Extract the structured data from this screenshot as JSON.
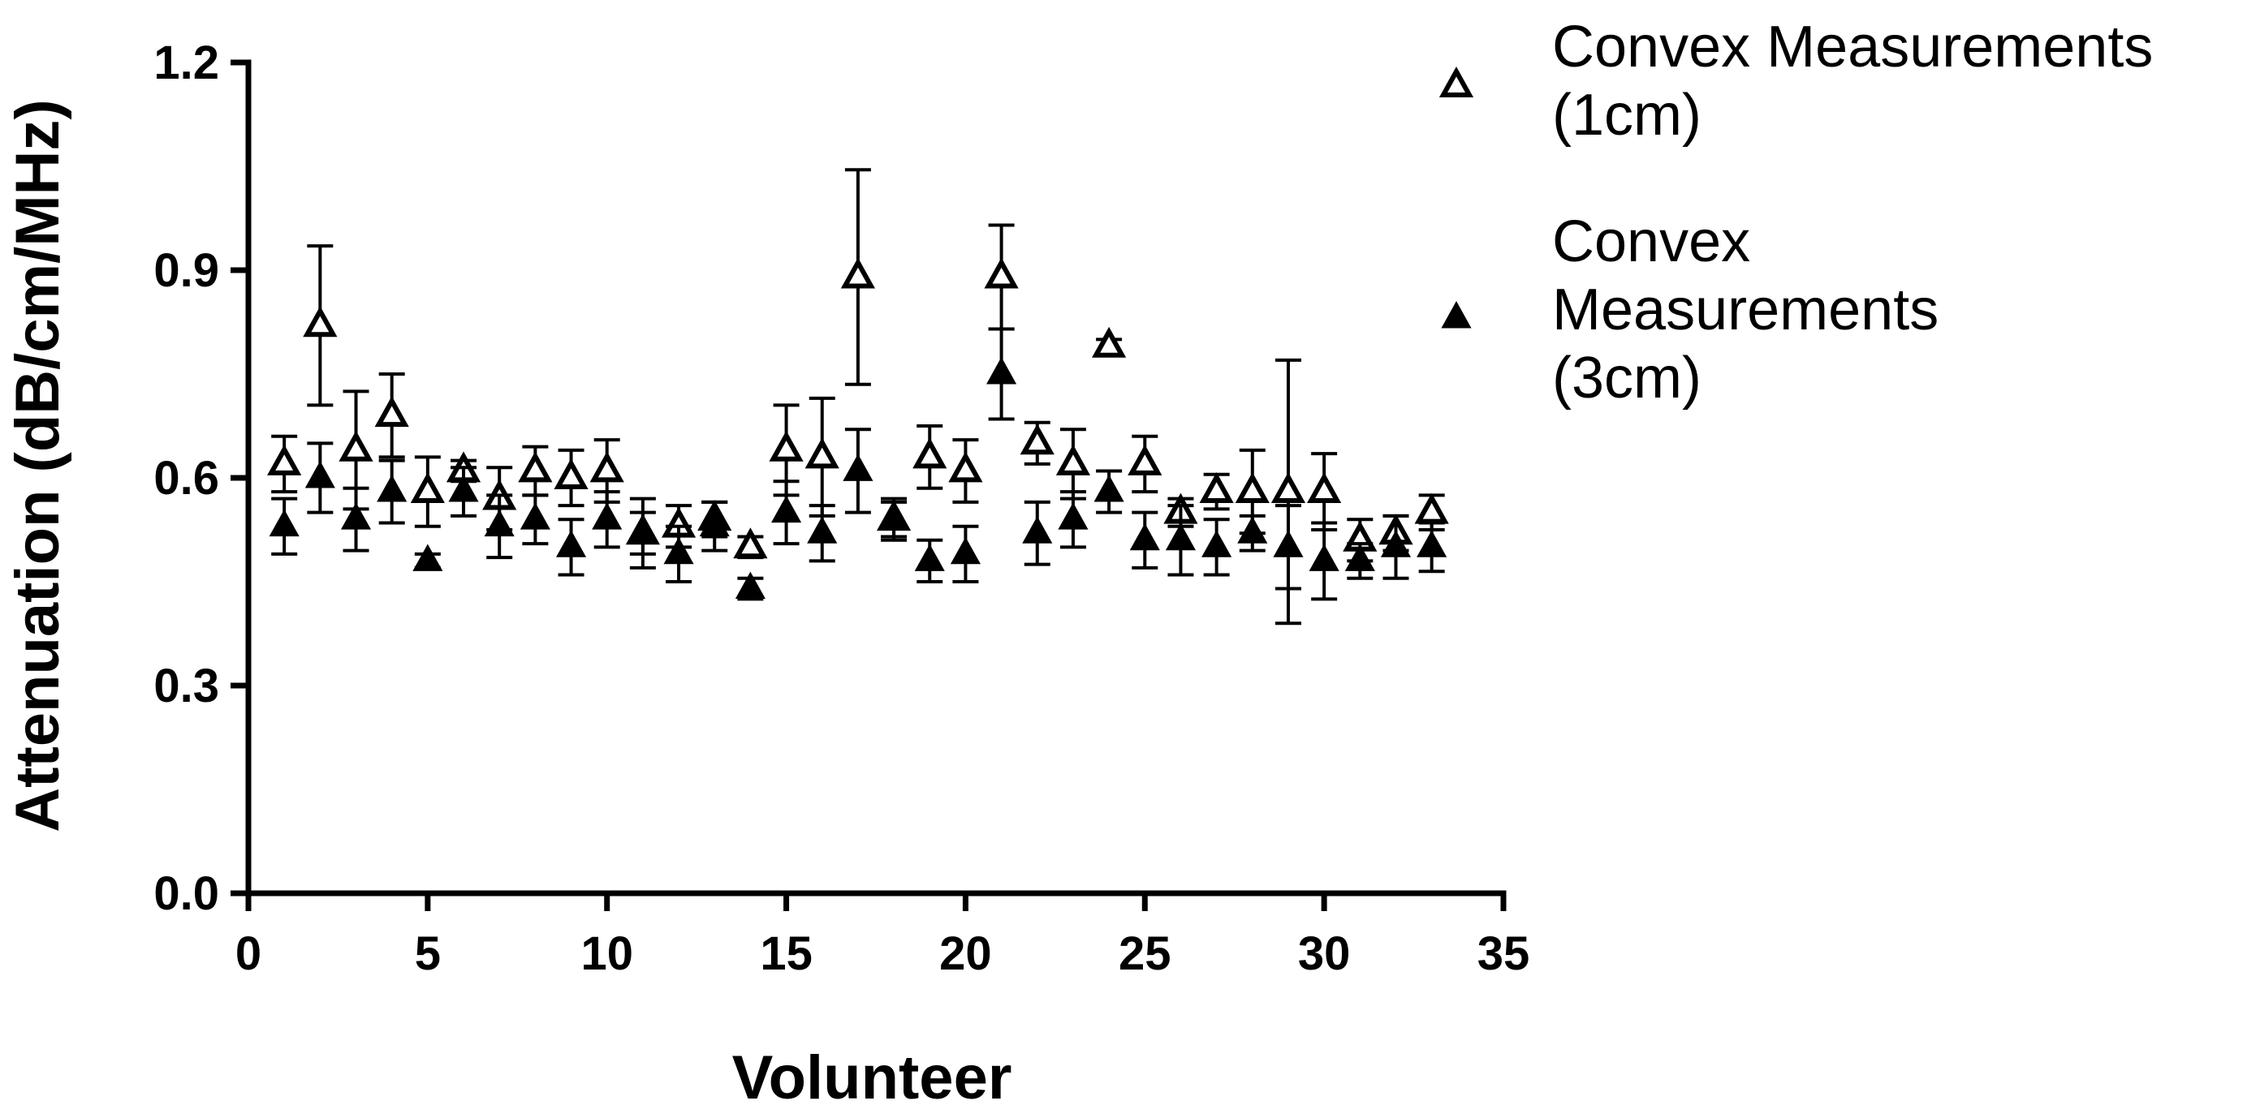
{
  "chart_data": {
    "type": "scatter",
    "title": "",
    "xlabel": "Volunteer",
    "ylabel": "Attenuation (dB/cm/MHz)",
    "xlim": [
      0,
      35
    ],
    "ylim": [
      0.0,
      1.2
    ],
    "xticks": [
      0,
      5,
      10,
      15,
      20,
      25,
      30,
      35
    ],
    "yticks": [
      0.0,
      0.3,
      0.6,
      0.9,
      1.2
    ],
    "xtick_labels": [
      "0",
      "5",
      "10",
      "15",
      "20",
      "25",
      "30",
      "35"
    ],
    "ytick_labels": [
      "0.0",
      "0.3",
      "0.6",
      "0.9",
      "1.2"
    ],
    "grid": false,
    "legend_position": "top-right, outside plot",
    "series": [
      {
        "name": "Convex Measurements (1cm)",
        "legend_lines": [
          "Convex Measurements",
          "(1cm)"
        ],
        "marker": "open-triangle",
        "x": [
          1,
          2,
          3,
          4,
          5,
          6,
          7,
          8,
          9,
          10,
          11,
          12,
          13,
          14,
          15,
          16,
          17,
          18,
          19,
          20,
          21,
          22,
          23,
          24,
          25,
          26,
          27,
          28,
          29,
          30,
          31,
          32,
          33
        ],
        "values": [
          0.62,
          0.82,
          0.64,
          0.69,
          0.58,
          0.61,
          0.57,
          0.61,
          0.6,
          0.61,
          0.52,
          0.53,
          0.54,
          0.5,
          0.64,
          0.63,
          0.89,
          0.54,
          0.63,
          0.61,
          0.89,
          0.65,
          0.62,
          0.79,
          0.62,
          0.55,
          0.58,
          0.58,
          0.58,
          0.58,
          0.51,
          0.52,
          0.55
        ],
        "error": [
          0.04,
          0.115,
          0.085,
          0.06,
          0.05,
          0.015,
          0.045,
          0.035,
          0.04,
          0.045,
          0.03,
          0.03,
          0.025,
          0.015,
          0.065,
          0.085,
          0.155,
          0.03,
          0.045,
          0.045,
          0.075,
          0.03,
          0.05,
          0.01,
          0.04,
          0.02,
          0.025,
          0.06,
          0.19,
          0.055,
          0.03,
          0.025,
          0.025
        ]
      },
      {
        "name": "Convex Measurements (3cm)",
        "legend_lines": [
          "Convex",
          "Measurements",
          "(3cm)"
        ],
        "marker": "filled-triangle",
        "x": [
          1,
          2,
          3,
          4,
          5,
          6,
          7,
          8,
          9,
          10,
          11,
          12,
          13,
          14,
          15,
          16,
          17,
          18,
          19,
          20,
          21,
          22,
          23,
          24,
          25,
          26,
          27,
          28,
          29,
          30,
          31,
          32,
          33
        ],
        "values": [
          0.53,
          0.6,
          0.54,
          0.58,
          0.48,
          0.58,
          0.53,
          0.54,
          0.5,
          0.54,
          0.52,
          0.49,
          0.53,
          0.44,
          0.55,
          0.52,
          0.61,
          0.54,
          0.48,
          0.49,
          0.75,
          0.52,
          0.54,
          0.58,
          0.51,
          0.51,
          0.5,
          0.52,
          0.5,
          0.48,
          0.48,
          0.5,
          0.5
        ],
        "error": [
          0.04,
          0.05,
          0.045,
          0.045,
          0.01,
          0.035,
          0.045,
          0.035,
          0.04,
          0.04,
          0.05,
          0.04,
          0.035,
          0.015,
          0.045,
          0.04,
          0.06,
          0.025,
          0.03,
          0.04,
          0.065,
          0.045,
          0.04,
          0.03,
          0.04,
          0.05,
          0.04,
          0.025,
          0.06,
          0.055,
          0.025,
          0.045,
          0.035
        ]
      }
    ]
  }
}
